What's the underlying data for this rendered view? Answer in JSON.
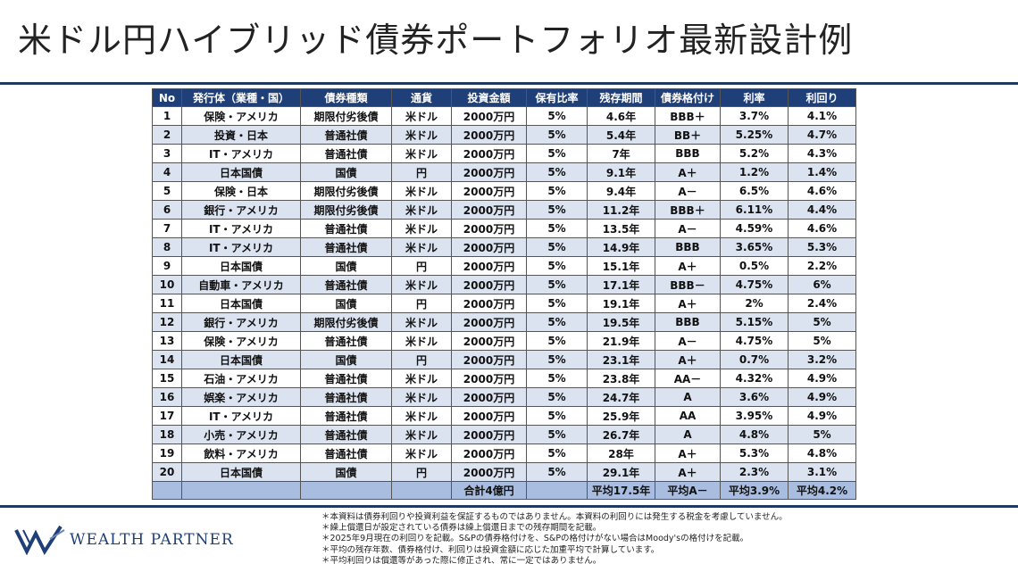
{
  "title": "米ドル円ハイブリッド債券ポートフォリオ最新設計例",
  "table": {
    "headers": [
      "No",
      "発行体（業種・国）",
      "債券種類",
      "通貨",
      "投資金額",
      "保有比率",
      "残存期間",
      "債券格付け",
      "利率",
      "利回り"
    ],
    "rows": [
      [
        "1",
        "保険・アメリカ",
        "期限付劣後債",
        "米ドル",
        "2000万円",
        "5%",
        "4.6年",
        "BBB＋",
        "3.7%",
        "4.1%"
      ],
      [
        "2",
        "投資・日本",
        "普通社債",
        "米ドル",
        "2000万円",
        "5%",
        "5.4年",
        "BB＋",
        "5.25%",
        "4.7%"
      ],
      [
        "3",
        "IT・アメリカ",
        "普通社債",
        "米ドル",
        "2000万円",
        "5%",
        "7年",
        "BBB",
        "5.2%",
        "4.3%"
      ],
      [
        "4",
        "日本国債",
        "国債",
        "円",
        "2000万円",
        "5%",
        "9.1年",
        "A＋",
        "1.2%",
        "1.4%"
      ],
      [
        "5",
        "保険・日本",
        "期限付劣後債",
        "米ドル",
        "2000万円",
        "5%",
        "9.4年",
        "A－",
        "6.5%",
        "4.6%"
      ],
      [
        "6",
        "銀行・アメリカ",
        "期限付劣後債",
        "米ドル",
        "2000万円",
        "5%",
        "11.2年",
        "BBB＋",
        "6.11%",
        "4.4%"
      ],
      [
        "7",
        "IT・アメリカ",
        "普通社債",
        "米ドル",
        "2000万円",
        "5%",
        "13.5年",
        "A－",
        "4.59%",
        "4.6%"
      ],
      [
        "8",
        "IT・アメリカ",
        "普通社債",
        "米ドル",
        "2000万円",
        "5%",
        "14.9年",
        "BBB",
        "3.65%",
        "5.3%"
      ],
      [
        "9",
        "日本国債",
        "国債",
        "円",
        "2000万円",
        "5%",
        "15.1年",
        "A＋",
        "0.5%",
        "2.2%"
      ],
      [
        "10",
        "自動車・アメリカ",
        "普通社債",
        "米ドル",
        "2000万円",
        "5%",
        "17.1年",
        "BBB－",
        "4.75%",
        "6%"
      ],
      [
        "11",
        "日本国債",
        "国債",
        "円",
        "2000万円",
        "5%",
        "19.1年",
        "A＋",
        "2%",
        "2.4%"
      ],
      [
        "12",
        "銀行・アメリカ",
        "期限付劣後債",
        "米ドル",
        "2000万円",
        "5%",
        "19.5年",
        "BBB",
        "5.15%",
        "5%"
      ],
      [
        "13",
        "保険・アメリカ",
        "普通社債",
        "米ドル",
        "2000万円",
        "5%",
        "21.9年",
        "A－",
        "4.75%",
        "5%"
      ],
      [
        "14",
        "日本国債",
        "国債",
        "円",
        "2000万円",
        "5%",
        "23.1年",
        "A＋",
        "0.7%",
        "3.2%"
      ],
      [
        "15",
        "石油・アメリカ",
        "普通社債",
        "米ドル",
        "2000万円",
        "5%",
        "23.8年",
        "AA－",
        "4.32%",
        "4.9%"
      ],
      [
        "16",
        "娯楽・アメリカ",
        "普通社債",
        "米ドル",
        "2000万円",
        "5%",
        "24.7年",
        "A",
        "3.6%",
        "4.9%"
      ],
      [
        "17",
        "IT・アメリカ",
        "普通社債",
        "米ドル",
        "2000万円",
        "5%",
        "25.9年",
        "AA",
        "3.95%",
        "4.9%"
      ],
      [
        "18",
        "小売・アメリカ",
        "普通社債",
        "米ドル",
        "2000万円",
        "5%",
        "26.7年",
        "A",
        "4.8%",
        "5%"
      ],
      [
        "19",
        "飲料・アメリカ",
        "普通社債",
        "米ドル",
        "2000万円",
        "5%",
        "28年",
        "A＋",
        "5.3%",
        "4.8%"
      ],
      [
        "20",
        "日本国債",
        "国債",
        "円",
        "2000万円",
        "5%",
        "29.1年",
        "A＋",
        "2.3%",
        "3.1%"
      ]
    ],
    "footer": [
      "",
      "",
      "",
      "",
      "合計4億円",
      "",
      "平均17.5年",
      "平均A－",
      "平均3.9%",
      "平均4.2%"
    ]
  },
  "logo": {
    "text": "WEALTH PARTNER",
    "color": "#1f3f78"
  },
  "notes": [
    "＊本資料は債券利回りや投資利益を保証するものではありません。本資料の利回りには発生する税金を考慮していません。",
    "＊繰上償還日が設定されている債券は繰上償還日までの残存期間を記載。",
    "＊2025年9月現在の利回りを記載。S&Pの債券格付けを、S&Pの格付けがない場合はMoody'sの格付けを記載。",
    "＊平均の残存年数、債券格付け、利回りは投資金額に応じた加重平均で計算しています。",
    "＊平均利回りは償還等があった際に修正され、常に一定ではありません。"
  ],
  "colors": {
    "header_bg": "#1f3f78",
    "row_alt": "#dbe3f1",
    "footer_bg": "#a9bde0",
    "rule": "#1f3a5f"
  }
}
